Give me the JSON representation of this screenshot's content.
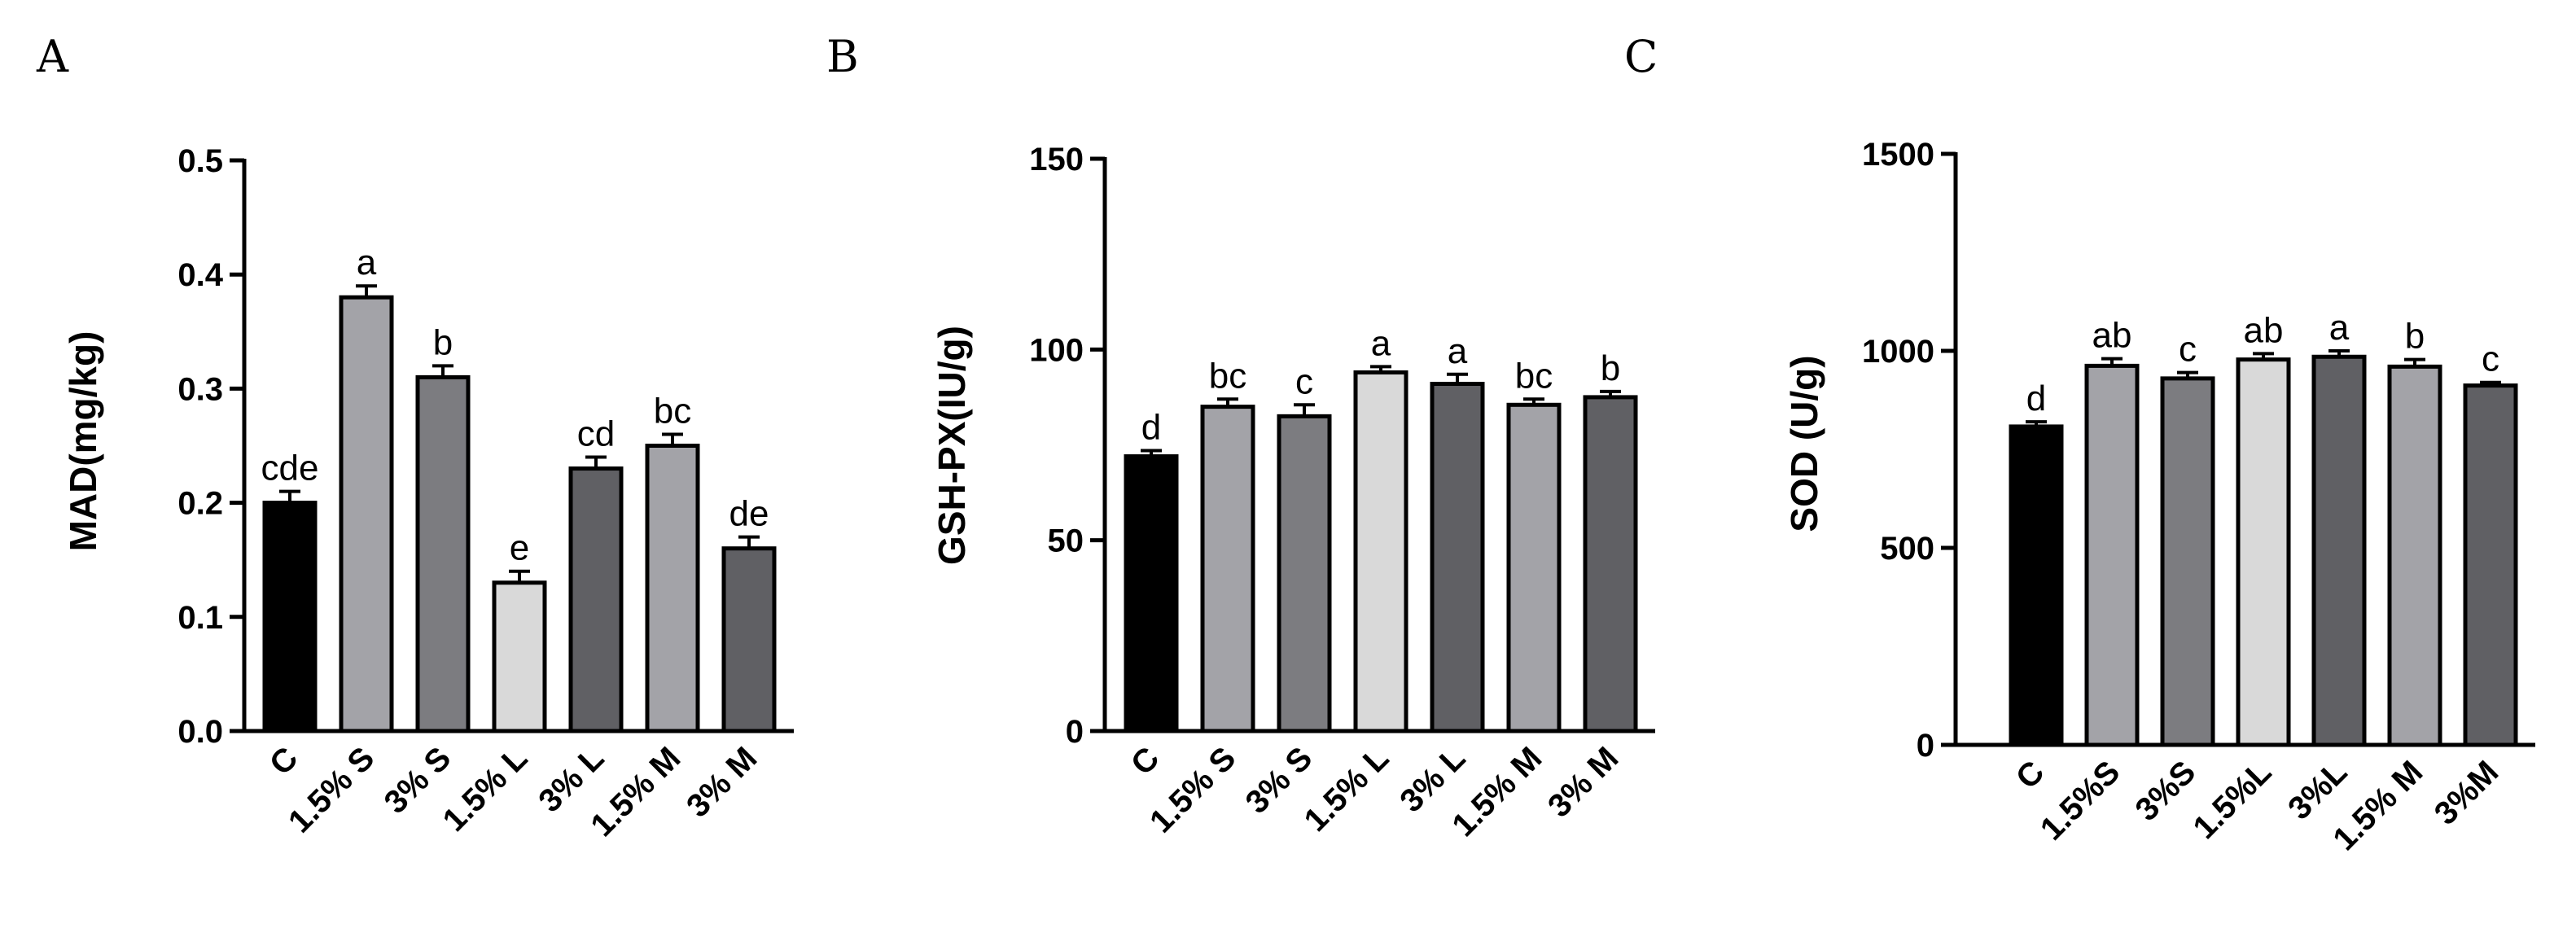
{
  "chart_data": [
    {
      "type": "bar",
      "panel_label": "A",
      "ylabel": "MAD(mg/kg)",
      "ylim": [
        0,
        0.5
      ],
      "yticks": [
        "0.0",
        "0.1",
        "0.2",
        "0.3",
        "0.4",
        "0.5"
      ],
      "ytick_values": [
        0,
        0.1,
        0.2,
        0.3,
        0.4,
        0.5
      ],
      "categories": [
        "C",
        "1.5% S",
        "3% S",
        "1.5% L",
        "3% L",
        "1.5% M",
        "3% M"
      ],
      "values": [
        0.2,
        0.38,
        0.31,
        0.13,
        0.23,
        0.25,
        0.16
      ],
      "errors": [
        0.01,
        0.01,
        0.01,
        0.01,
        0.01,
        0.01,
        0.01
      ],
      "significance": [
        "cde",
        "a",
        "b",
        "e",
        "cd",
        "bc",
        "de"
      ],
      "bar_colors": [
        "#000000",
        "#a3a3a8",
        "#7c7c80",
        "#d9d9d9",
        "#606064",
        "#a3a3a8",
        "#606064"
      ],
      "grid": false
    },
    {
      "type": "bar",
      "panel_label": "B",
      "ylabel": "GSH-PX(IU/g)",
      "ylim": [
        0,
        150
      ],
      "yticks": [
        "0",
        "50",
        "100",
        "150"
      ],
      "ytick_values": [
        0,
        50,
        100,
        150
      ],
      "categories": [
        "C",
        "1.5% S",
        "3% S",
        "1.5% L",
        "3% L",
        "1.5% M",
        "3% M"
      ],
      "values": [
        72,
        85,
        82.5,
        94,
        91,
        85.5,
        87.5
      ],
      "errors": [
        1.5,
        2,
        3,
        1.5,
        2.5,
        1.5,
        1.5
      ],
      "significance": [
        "d",
        "bc",
        "c",
        "a",
        "a",
        "bc",
        "b"
      ],
      "bar_colors": [
        "#000000",
        "#a3a3a8",
        "#7c7c80",
        "#d9d9d9",
        "#606064",
        "#a3a3a8",
        "#606064"
      ],
      "grid": false
    },
    {
      "type": "bar",
      "panel_label": "C",
      "ylabel": "SOD (U/g)",
      "ylim": [
        0,
        1500
      ],
      "yticks": [
        "0",
        "500",
        "1000",
        "1500"
      ],
      "ytick_values": [
        0,
        500,
        1000,
        1500
      ],
      "categories": [
        "C",
        "1.5%S",
        "3%S",
        "1.5%L",
        "3%L",
        "1.5% M",
        "3%M"
      ],
      "values": [
        808,
        962,
        930,
        978,
        985,
        960,
        912
      ],
      "errors": [
        12,
        18,
        15,
        15,
        15,
        18,
        8
      ],
      "significance": [
        "d",
        "ab",
        "c",
        "ab",
        "a",
        "b",
        "c"
      ],
      "bar_colors": [
        "#000000",
        "#a3a3a8",
        "#7c7c80",
        "#d9d9d9",
        "#606064",
        "#a3a3a8",
        "#606064"
      ],
      "grid": false
    }
  ]
}
